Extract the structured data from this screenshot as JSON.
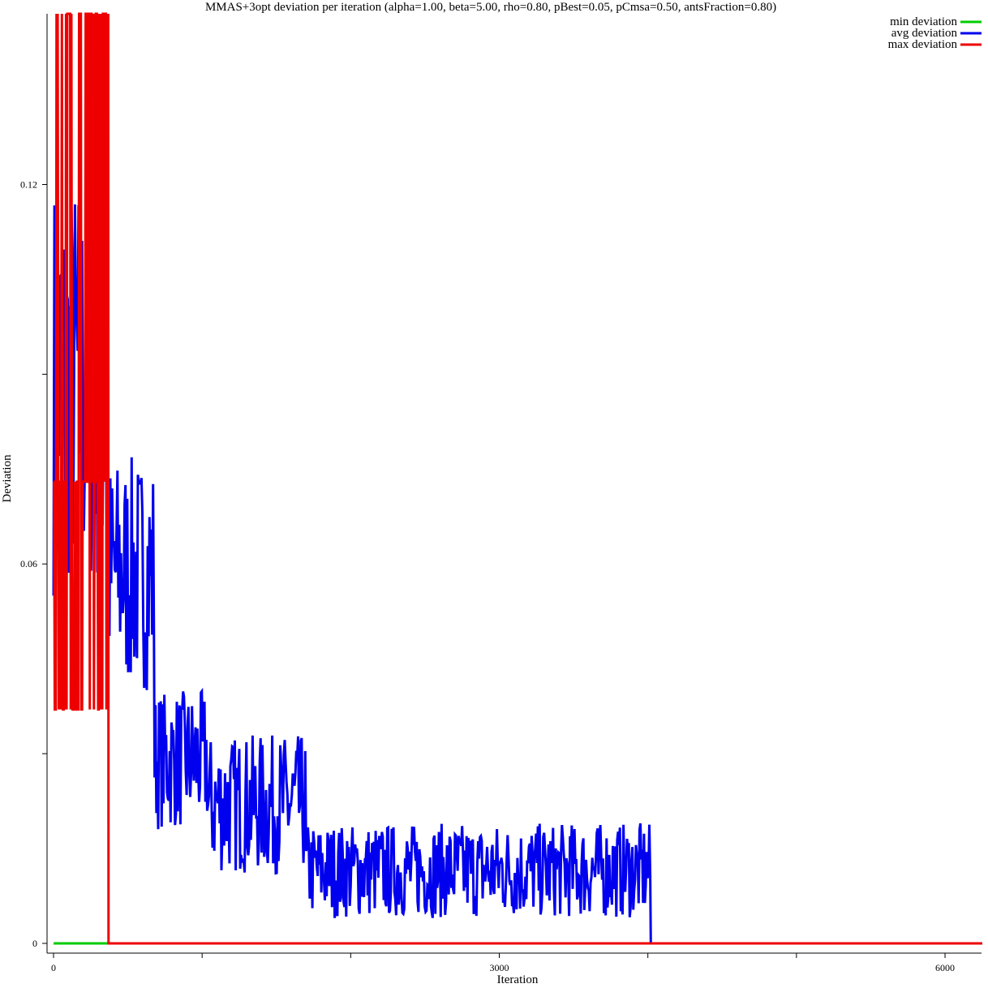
{
  "chart_data": {
    "type": "line",
    "title": "MMAS+3opt deviation per iteration (alpha=1.00, beta=5.00, rho=0.80, pBest=0.05, pCmsa=0.50, antsFraction=0.80)",
    "xlabel": "Iteration",
    "ylabel": "Deviation",
    "xlim": [
      0,
      6250
    ],
    "ylim": [
      0,
      0.147
    ],
    "x_ticks": [
      {
        "value": 0,
        "label": "0"
      },
      {
        "value": 1000,
        "label": ""
      },
      {
        "value": 2000,
        "label": ""
      },
      {
        "value": 3000,
        "label": "3000"
      },
      {
        "value": 4000,
        "label": ""
      },
      {
        "value": 5000,
        "label": ""
      },
      {
        "value": 6000,
        "label": "6000"
      }
    ],
    "y_ticks": [
      {
        "value": 0,
        "label": "0"
      },
      {
        "value": 0.03,
        "label": ""
      },
      {
        "value": 0.06,
        "label": "0.06"
      },
      {
        "value": 0.09,
        "label": ""
      },
      {
        "value": 0.12,
        "label": "0.12"
      }
    ],
    "grid": false,
    "legend_position": "top-right",
    "series": [
      {
        "name": "min deviation",
        "color": "#00cc00",
        "points": [
          [
            0,
            0
          ],
          [
            6250,
            0
          ]
        ]
      },
      {
        "name": "avg deviation",
        "color": "#0000ee",
        "segments": [
          {
            "x": [
              0,
              370
            ],
            "low": 0.055,
            "high": 0.122
          },
          {
            "x": [
              370,
              680
            ],
            "low": 0.04,
            "high": 0.077
          },
          {
            "x": [
              680,
              1040
            ],
            "low": 0.018,
            "high": 0.04
          },
          {
            "x": [
              1040,
              1700
            ],
            "low": 0.011,
            "high": 0.033
          },
          {
            "x": [
              1700,
              4020
            ],
            "low": 0.004,
            "high": 0.019
          }
        ],
        "end": [
          [
            4020,
            0
          ],
          [
            6250,
            0
          ]
        ]
      },
      {
        "name": "max deviation",
        "color": "#ee0000",
        "oscillation": {
          "x": [
            0,
            370
          ],
          "levels": [
            0.037,
            0.073,
            0.147
          ]
        },
        "after": [
          [
            370,
            0
          ],
          [
            6250,
            0
          ]
        ]
      }
    ]
  }
}
